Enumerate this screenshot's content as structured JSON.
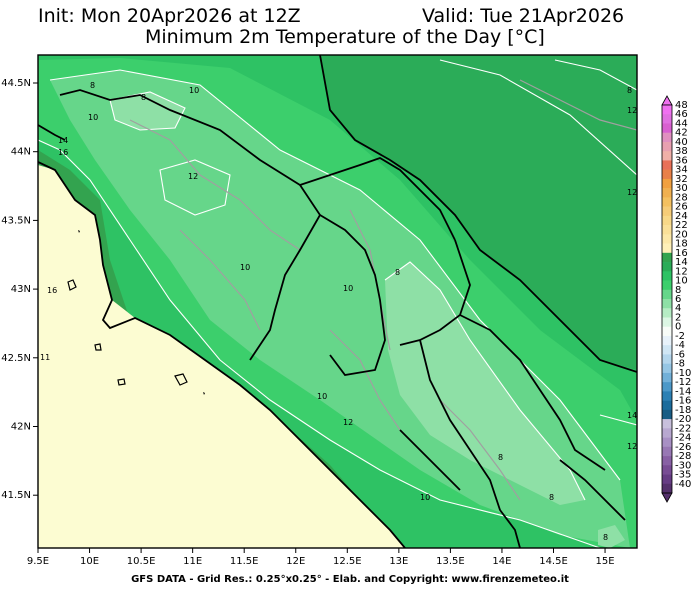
{
  "header": {
    "init": "Init: Mon 20Apr2026 at 12Z",
    "valid": "Valid: Tue 21Apr2026",
    "title": "Minimum 2m Temperature of the Day [°C]"
  },
  "footer": "GFS DATA - Grid Res.: 0.25°x0.25° - Elab. and Copyright: www.firenzemeteo.it",
  "map": {
    "lon_labels": [
      "9.5E",
      "10E",
      "10.5E",
      "11E",
      "11.5E",
      "12E",
      "12.5E",
      "13E",
      "13.5E",
      "14E",
      "14.5E",
      "15E"
    ],
    "lat_labels": [
      "44.5N",
      "44N",
      "43.5N",
      "43N",
      "42.5N",
      "42N",
      "41.5N"
    ],
    "contour_labels": [
      "8",
      "8",
      "10",
      "10",
      "12",
      "14",
      "16",
      "12",
      "10",
      "10",
      "8",
      "10",
      "12",
      "12",
      "8",
      "8",
      "8",
      "10",
      "14",
      "12",
      "8",
      "11",
      "16"
    ]
  },
  "colorbar": {
    "labels": [
      "48",
      "46",
      "44",
      "42",
      "40",
      "38",
      "36",
      "34",
      "32",
      "30",
      "28",
      "26",
      "24",
      "22",
      "20",
      "18",
      "16",
      "14",
      "12",
      "10",
      "8",
      "6",
      "4",
      "2",
      "0",
      "-2",
      "-4",
      "-6",
      "-8",
      "-10",
      "-12",
      "-14",
      "-16",
      "-18",
      "-20",
      "-22",
      "-24",
      "-26",
      "-28",
      "-30",
      "-35",
      "-40"
    ],
    "colors": [
      "#f070f0",
      "#e070e0",
      "#d860d0",
      "#e090c0",
      "#e8a0b0",
      "#f0b0a8",
      "#e87058",
      "#e88048",
      "#f0a040",
      "#f0b050",
      "#f4c060",
      "#f6cc78",
      "#f8d888",
      "#fae098",
      "#fce8a8",
      "#fef0b8",
      "#33a34f",
      "#2bac58",
      "#2ec264",
      "#3ccf6c",
      "#66d68a",
      "#8ee0a6",
      "#b6ecc4",
      "#dcf6e4",
      "#f8fcf8",
      "#e8f2fa",
      "#d0e6f4",
      "#b4d6ec",
      "#96c6e4",
      "#72b0d8",
      "#4c98c8",
      "#2c80b4",
      "#1c6c9c",
      "#185c84",
      "#c8c0dc",
      "#b8a8d0",
      "#a890c4",
      "#9878b4",
      "#8860a4",
      "#784c94",
      "#663c84",
      "#54306c"
    ]
  },
  "palette": {
    "sea": "#fcfcd2",
    "temp_8": "#8ee0a6",
    "temp_10": "#66d68a",
    "temp_12": "#3ccf6c",
    "temp_14": "#2ec264",
    "temp_16": "#33a34f"
  }
}
